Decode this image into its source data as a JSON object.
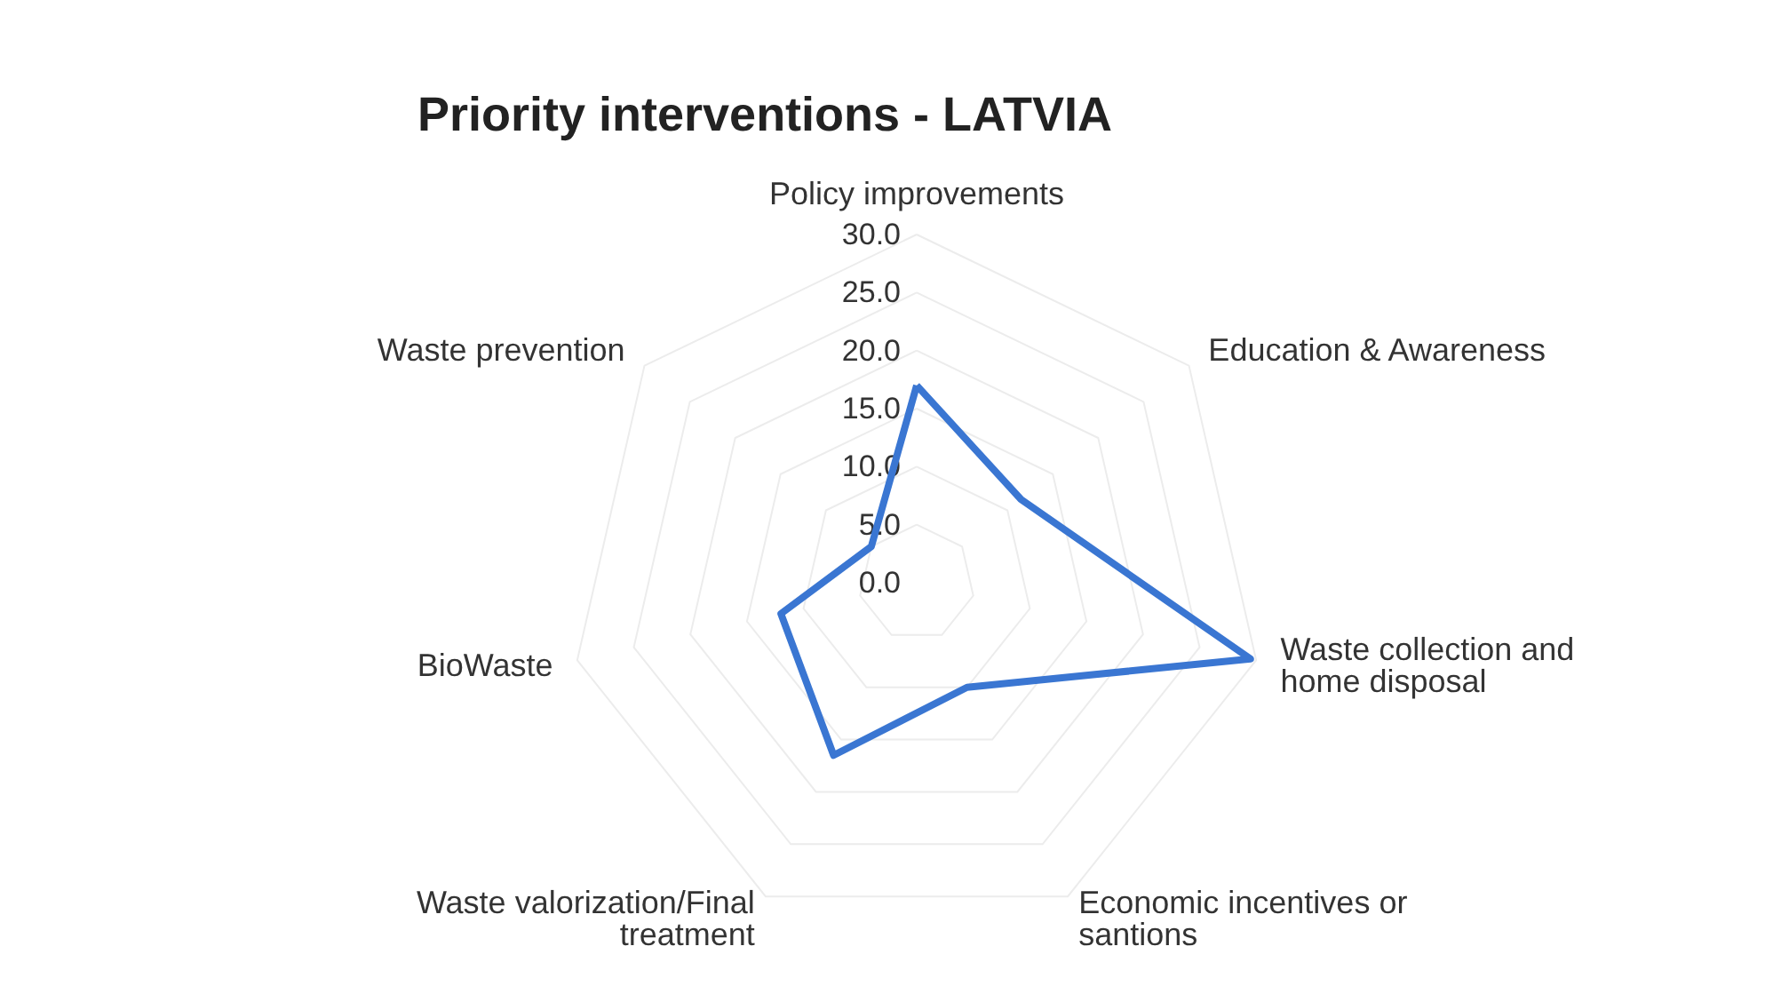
{
  "chart_data": {
    "type": "radar",
    "title": "Priority interventions - LATVIA",
    "categories": [
      "Policy improvements",
      "Education & Awareness",
      "Waste collection and\nhome disposal",
      "Economic incentives or\nsantions",
      "Waste valorization/Final\ntreatment",
      "BioWaste",
      "Waste prevention"
    ],
    "series": [
      {
        "color": "#3a76d2",
        "values": [
          17,
          11.5,
          29.5,
          10,
          16.5,
          12,
          5
        ]
      }
    ],
    "ylim": [
      0,
      30
    ],
    "yticks": [
      {
        "value": 0,
        "label": "0.0"
      },
      {
        "value": 5,
        "label": "5.0"
      },
      {
        "value": 10,
        "label": "10.0"
      },
      {
        "value": 15,
        "label": "15.0"
      },
      {
        "value": 20,
        "label": "20.0"
      },
      {
        "value": 25,
        "label": "25.0"
      },
      {
        "value": 30,
        "label": "30.0"
      }
    ],
    "grid": true,
    "marker": "none",
    "line_style": "solid"
  }
}
